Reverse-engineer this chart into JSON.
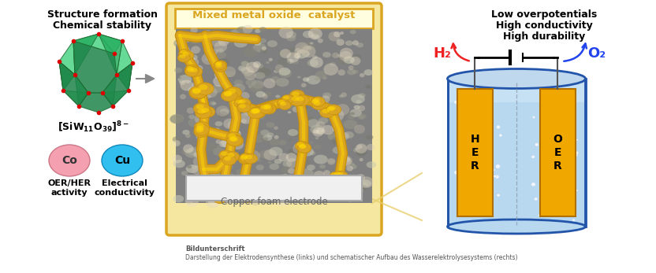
{
  "background_color": "#ffffff",
  "caption_bold": "Bildunterschrift",
  "caption_line2": "Darstellung der Elektrodensynthese (links) und schematischer Aufbau des Wasserelektrolysesystems (rechts)",
  "left_title1": "Structure formation",
  "left_title2": "Chemical stability",
  "co_label": "Co",
  "cu_label": "Cu",
  "oer_her_label": "OER/HER",
  "activity_label": "activity",
  "electrical_label": "Electrical",
  "conductivity_label": "conductivity",
  "center_box_label": "Mixed metal oxide  catalyst",
  "electrode_label": "Copper foam electrode",
  "right_title1": "Low overpotentials",
  "right_title2": "High conductivity",
  "right_title3": "High durability",
  "h2_label": "H₂",
  "o2_label": "O₂",
  "co_color": "#F4A0B0",
  "cu_color": "#30BFEE",
  "gold_dark": "#C8900A",
  "gold_mid": "#DAA520",
  "gold_light": "#FFD700",
  "h2_color": "#EE2222",
  "o2_color": "#2244EE",
  "cyl_fill": "#6AABE0",
  "cyl_edge": "#2255AA",
  "water_light": "#B8D8F0"
}
